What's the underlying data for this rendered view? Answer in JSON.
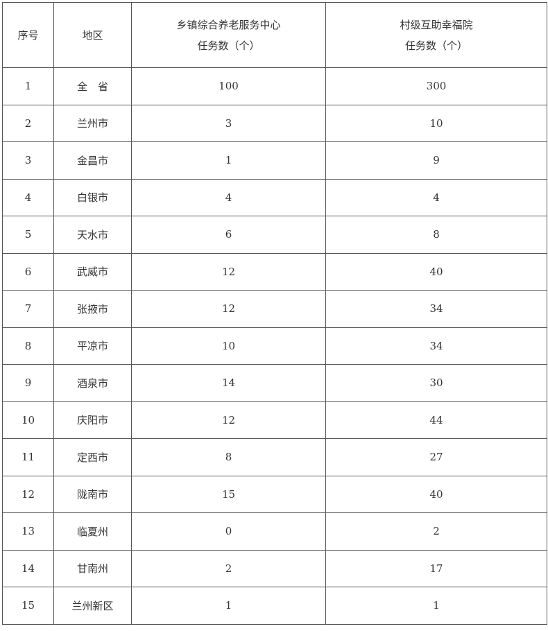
{
  "headers": {
    "index": "序号",
    "region": "地区",
    "township_line1": "乡镇综合养老服务中心",
    "township_line2": "任务数（个）",
    "village_line1": "村级互助幸福院",
    "village_line2": "任务数（个）"
  },
  "rows": [
    {
      "no": "1",
      "region": "全　省",
      "township": "100",
      "village": "300"
    },
    {
      "no": "2",
      "region": "兰州市",
      "township": "3",
      "village": "10"
    },
    {
      "no": "3",
      "region": "金昌市",
      "township": "1",
      "village": "9"
    },
    {
      "no": "4",
      "region": "白银市",
      "township": "4",
      "village": "4"
    },
    {
      "no": "5",
      "region": "天水市",
      "township": "6",
      "village": "8"
    },
    {
      "no": "6",
      "region": "武威市",
      "township": "12",
      "village": "40"
    },
    {
      "no": "7",
      "region": "张掖市",
      "township": "12",
      "village": "34"
    },
    {
      "no": "8",
      "region": "平凉市",
      "township": "10",
      "village": "34"
    },
    {
      "no": "9",
      "region": "酒泉市",
      "township": "14",
      "village": "30"
    },
    {
      "no": "10",
      "region": "庆阳市",
      "township": "12",
      "village": "44"
    },
    {
      "no": "11",
      "region": "定西市",
      "township": "8",
      "village": "27"
    },
    {
      "no": "12",
      "region": "陇南市",
      "township": "15",
      "village": "40"
    },
    {
      "no": "13",
      "region": "临夏州",
      "township": "0",
      "village": "2"
    },
    {
      "no": "14",
      "region": "甘南州",
      "township": "2",
      "village": "17"
    },
    {
      "no": "15",
      "region": "兰州新区",
      "township": "1",
      "village": "1"
    }
  ]
}
